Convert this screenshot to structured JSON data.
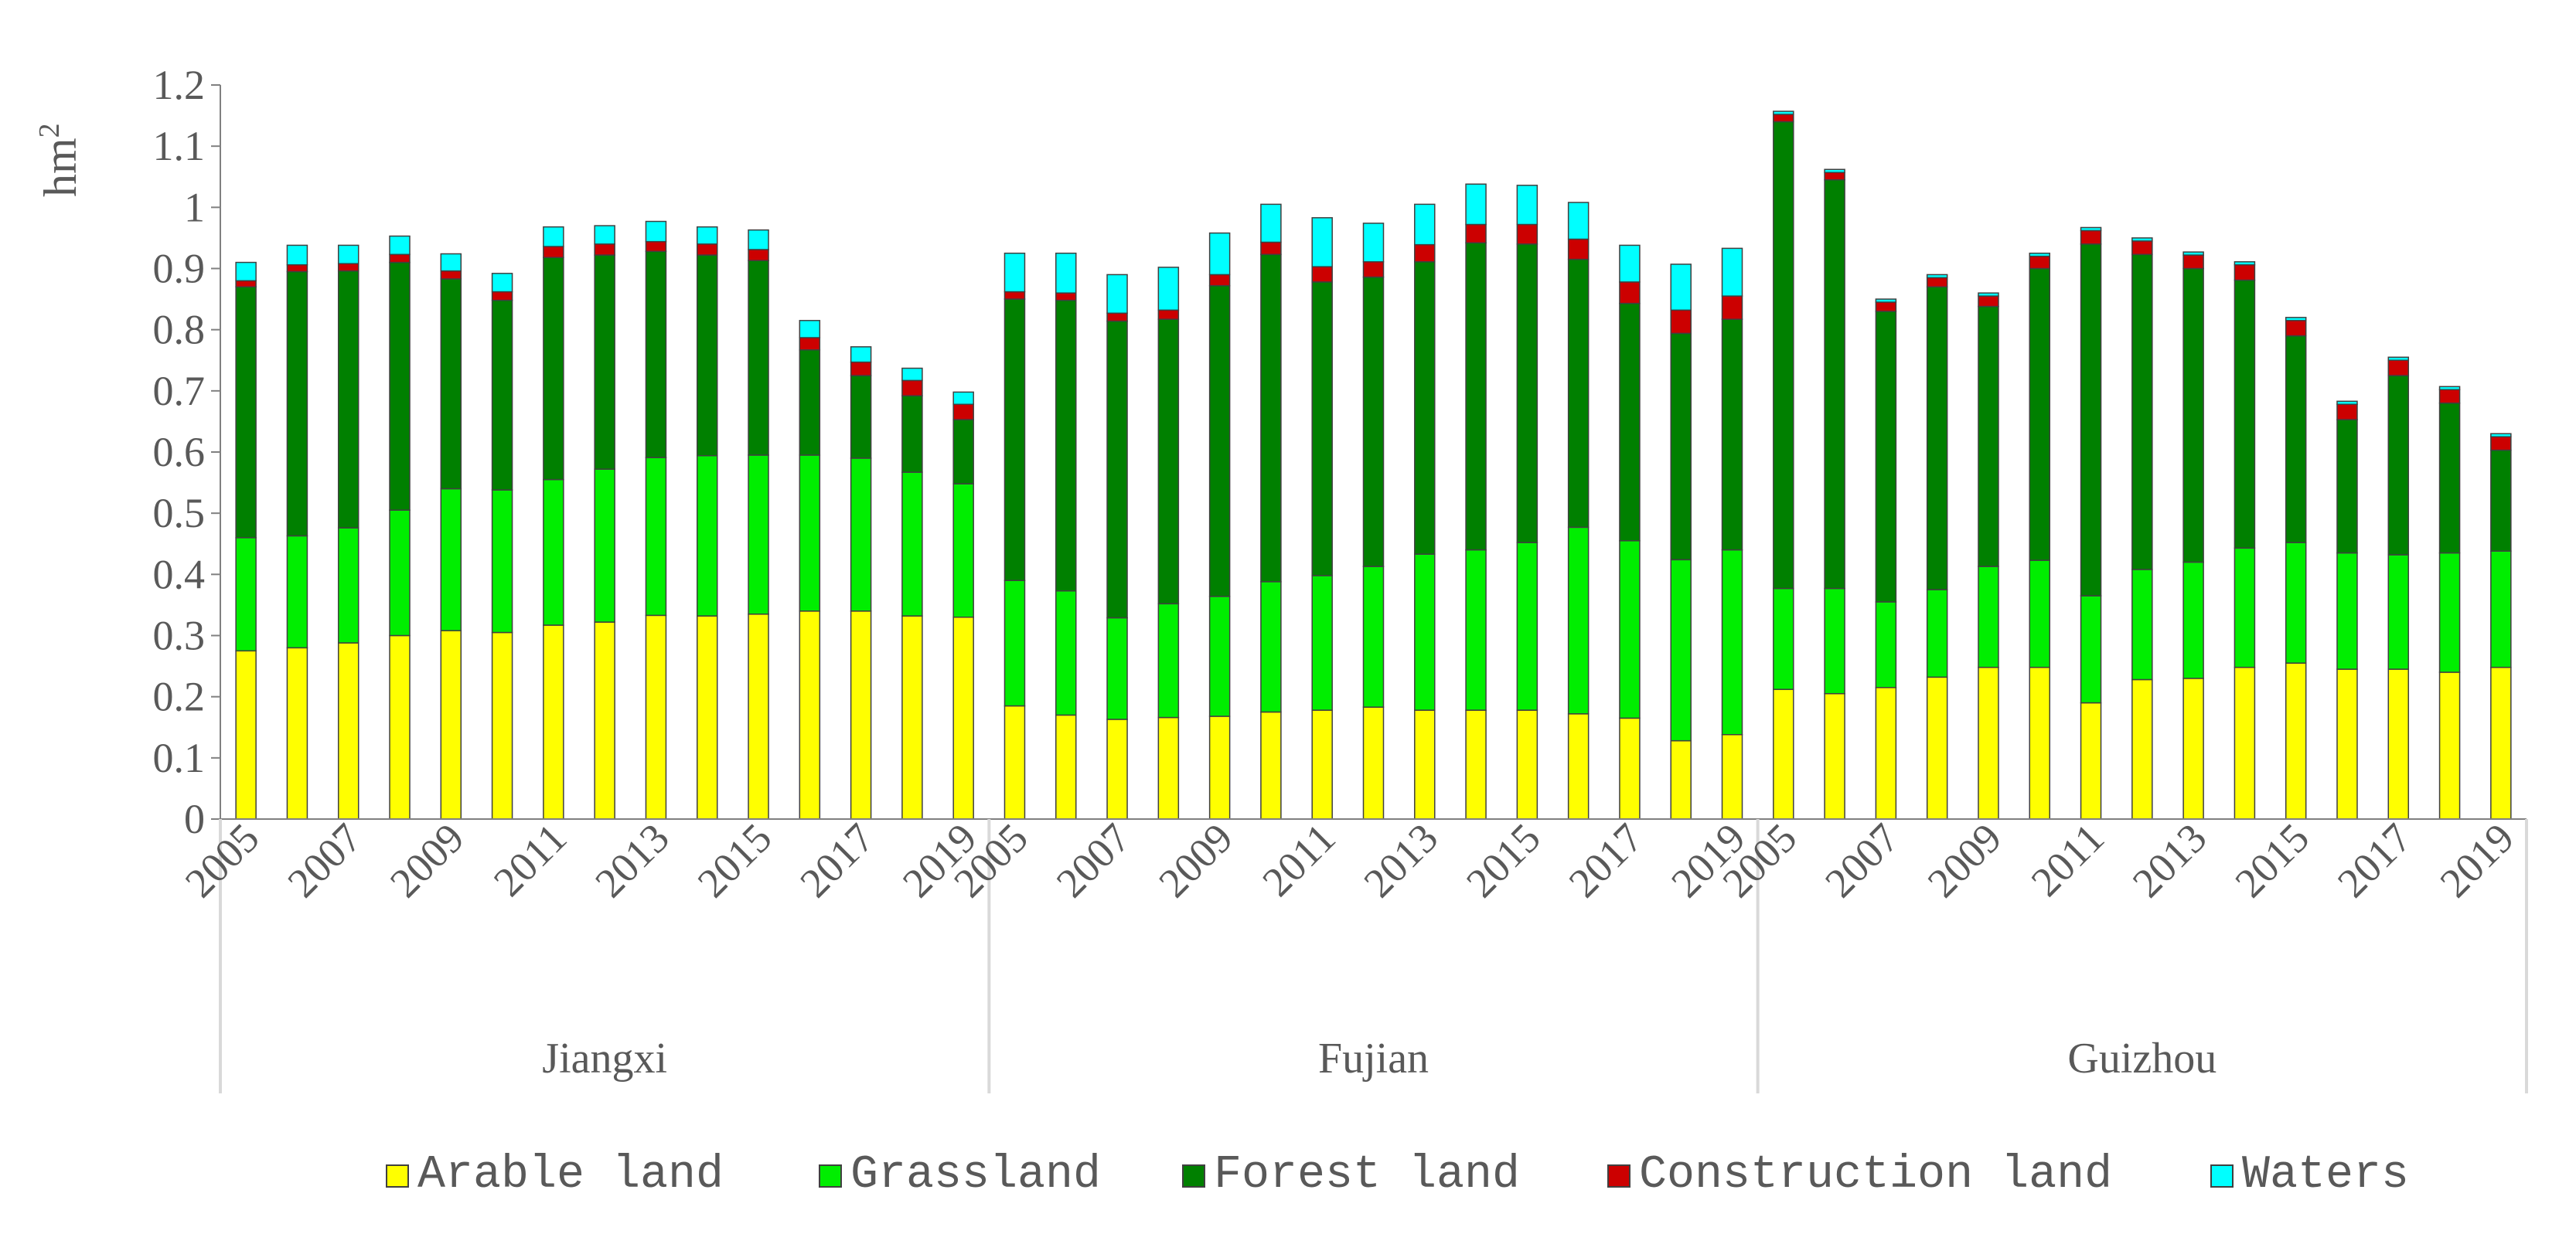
{
  "chart_data": {
    "type": "bar",
    "stacked": true,
    "title": "",
    "ylabel": "hm",
    "ylabel_superscript": "2",
    "ylim": [
      0,
      1.2
    ],
    "yticks": [
      "0",
      "0.1",
      "0.2",
      "0.3",
      "0.4",
      "0.5",
      "0.6",
      "0.7",
      "0.8",
      "0.9",
      "1",
      "1.1",
      "1.2"
    ],
    "groups": [
      "Jiangxi",
      "Fujian",
      "Guizhou"
    ],
    "years": [
      "2005",
      "2006",
      "2007",
      "2008",
      "2009",
      "2010",
      "2011",
      "2012",
      "2013",
      "2014",
      "2015",
      "2016",
      "2017",
      "2018",
      "2019"
    ],
    "year_tick_labels": [
      "2005",
      "2007",
      "2009",
      "2011",
      "2013",
      "2015",
      "2017",
      "2019"
    ],
    "colors": [
      "#ffff00",
      "#00ee00",
      "#008000",
      "#cc0000",
      "#00ffff"
    ],
    "series": [
      {
        "name": "Arable land",
        "values": [
          [
            0.275,
            0.28,
            0.288,
            0.3,
            0.308,
            0.305,
            0.317,
            0.322,
            0.333,
            0.332,
            0.335,
            0.34,
            0.34,
            0.332,
            0.33
          ],
          [
            0.185,
            0.17,
            0.163,
            0.166,
            0.168,
            0.175,
            0.178,
            0.183,
            0.178,
            0.178,
            0.178,
            0.172,
            0.165,
            0.128,
            0.138
          ],
          [
            0.212,
            0.205,
            0.215,
            0.232,
            0.248,
            0.248,
            0.19,
            0.228,
            0.23,
            0.248,
            0.255,
            0.245,
            0.245,
            0.24,
            0.248
          ]
        ]
      },
      {
        "name": "Grassland",
        "values": [
          [
            0.185,
            0.183,
            0.188,
            0.205,
            0.232,
            0.233,
            0.238,
            0.25,
            0.258,
            0.262,
            0.26,
            0.255,
            0.25,
            0.235,
            0.218
          ],
          [
            0.205,
            0.203,
            0.166,
            0.186,
            0.196,
            0.213,
            0.22,
            0.23,
            0.255,
            0.262,
            0.274,
            0.305,
            0.29,
            0.296,
            0.302
          ],
          [
            0.165,
            0.172,
            0.14,
            0.143,
            0.165,
            0.175,
            0.175,
            0.18,
            0.19,
            0.195,
            0.197,
            0.19,
            0.187,
            0.195,
            0.19
          ]
        ]
      },
      {
        "name": "Forest land",
        "values": [
          [
            0.41,
            0.432,
            0.42,
            0.405,
            0.343,
            0.31,
            0.363,
            0.35,
            0.337,
            0.328,
            0.318,
            0.172,
            0.135,
            0.125,
            0.105
          ],
          [
            0.46,
            0.475,
            0.485,
            0.465,
            0.508,
            0.535,
            0.48,
            0.473,
            0.478,
            0.502,
            0.488,
            0.438,
            0.388,
            0.37,
            0.377
          ],
          [
            0.763,
            0.668,
            0.475,
            0.495,
            0.425,
            0.477,
            0.575,
            0.515,
            0.48,
            0.438,
            0.338,
            0.218,
            0.293,
            0.245,
            0.165
          ]
        ]
      },
      {
        "name": "Construction land",
        "values": [
          [
            0.01,
            0.011,
            0.012,
            0.013,
            0.013,
            0.014,
            0.018,
            0.018,
            0.016,
            0.018,
            0.018,
            0.02,
            0.022,
            0.025,
            0.025
          ],
          [
            0.012,
            0.012,
            0.013,
            0.015,
            0.018,
            0.02,
            0.025,
            0.025,
            0.028,
            0.03,
            0.032,
            0.033,
            0.035,
            0.038,
            0.038
          ],
          [
            0.012,
            0.012,
            0.015,
            0.015,
            0.017,
            0.02,
            0.022,
            0.022,
            0.022,
            0.025,
            0.025,
            0.025,
            0.025,
            0.022,
            0.022
          ]
        ]
      },
      {
        "name": "Waters",
        "values": [
          [
            0.03,
            0.032,
            0.03,
            0.03,
            0.028,
            0.03,
            0.032,
            0.03,
            0.033,
            0.028,
            0.032,
            0.028,
            0.025,
            0.02,
            0.02
          ],
          [
            0.063,
            0.065,
            0.063,
            0.07,
            0.068,
            0.062,
            0.08,
            0.063,
            0.066,
            0.066,
            0.064,
            0.06,
            0.06,
            0.075,
            0.078
          ],
          [
            0.005,
            0.005,
            0.005,
            0.005,
            0.005,
            0.005,
            0.005,
            0.005,
            0.005,
            0.005,
            0.005,
            0.005,
            0.005,
            0.005,
            0.005
          ]
        ]
      }
    ],
    "legend": [
      "Arable land",
      "Grassland",
      "Forest land",
      "Construction land",
      "Waters"
    ],
    "legend_position": "bottom"
  }
}
